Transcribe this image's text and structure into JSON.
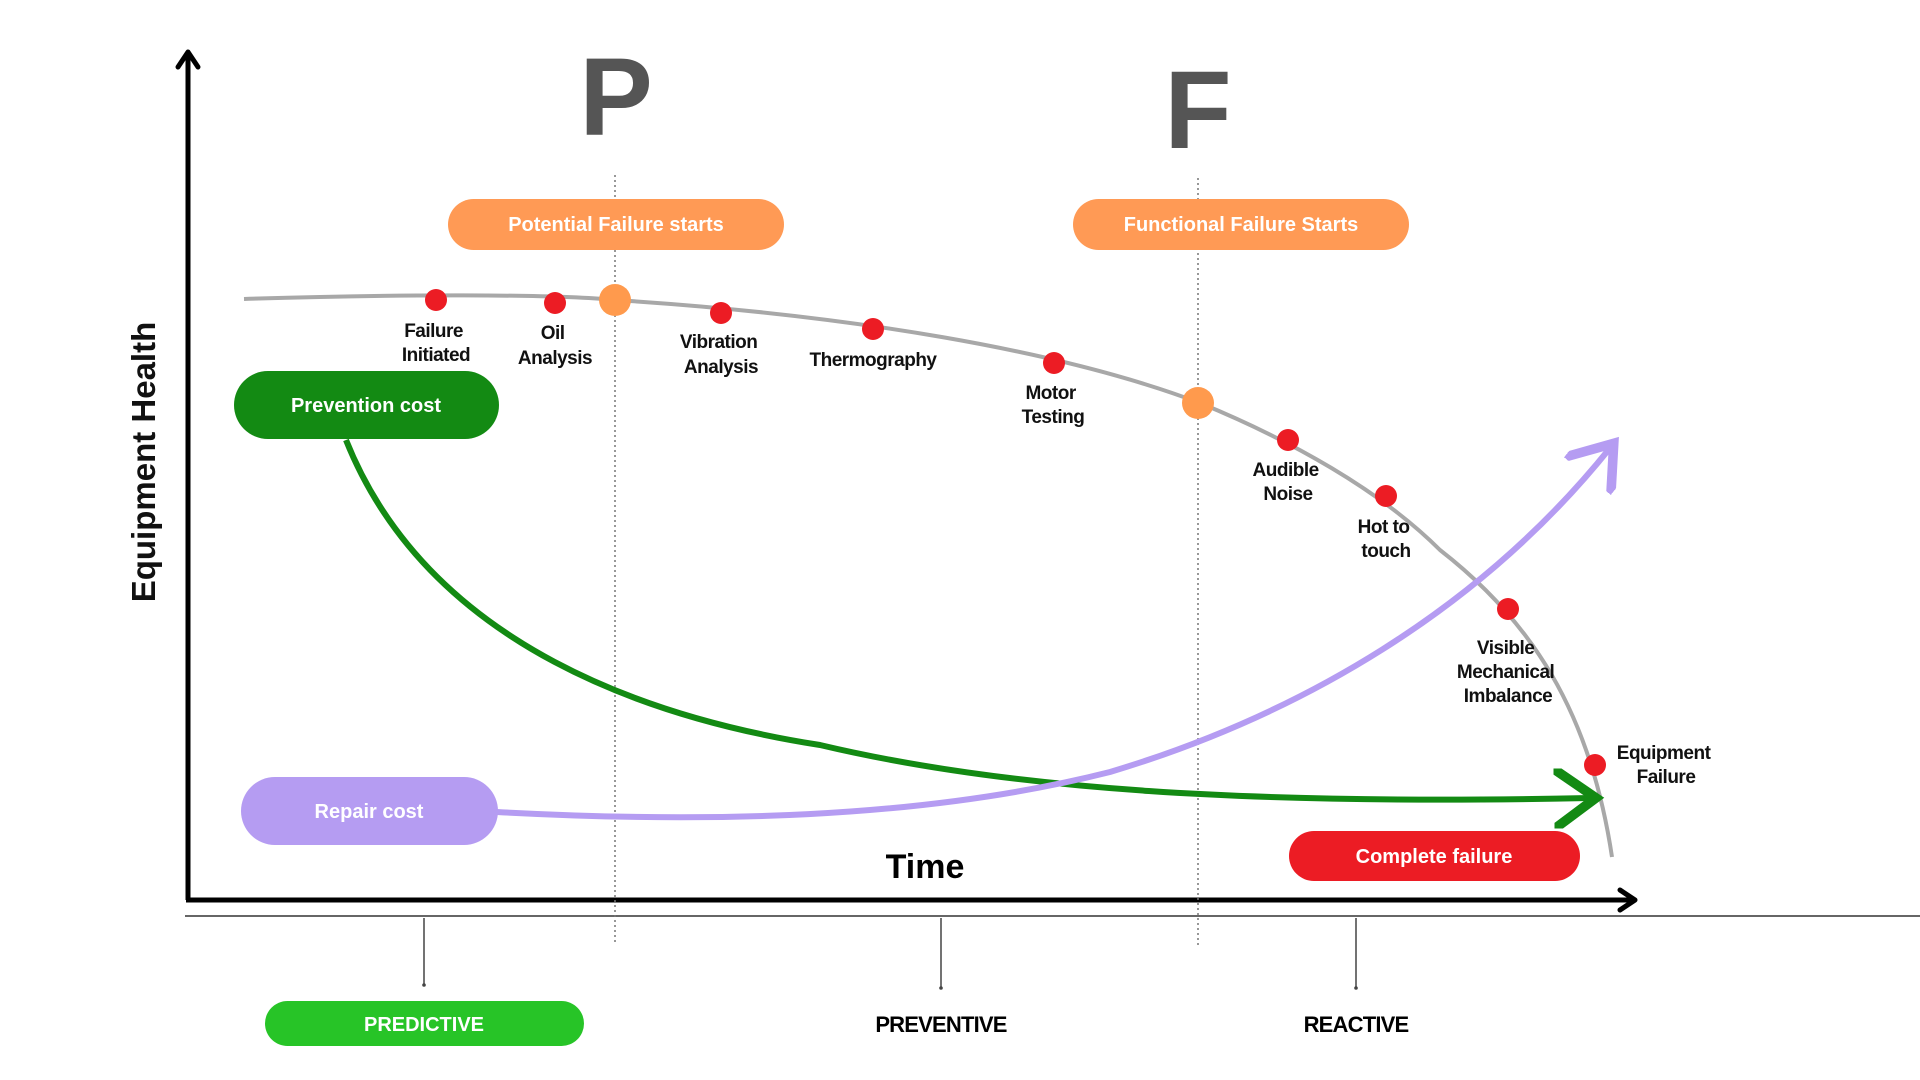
{
  "axes": {
    "y_label": "Equipment Health",
    "x_label": "Time"
  },
  "markers": {
    "p": "P",
    "f": "F"
  },
  "banners": {
    "potential": "Potential Failure starts",
    "functional": "Functional Failure Starts",
    "prevention": "Prevention cost",
    "repair": "Repair cost",
    "complete": "Complete failure"
  },
  "points": {
    "failure_initiated": [
      "Failure",
      "Initiated"
    ],
    "oil_analysis": [
      "Oil",
      "Analysis"
    ],
    "vibration_analysis": [
      "Vibration",
      "Analysis"
    ],
    "thermography": [
      "Thermography"
    ],
    "motor_testing": [
      "Motor",
      "Testing"
    ],
    "audible_noise": [
      "Audible",
      "Noise"
    ],
    "hot_to_touch": [
      "Hot to",
      "touch"
    ],
    "visible_imbalance": [
      "Visible",
      "Mechanical",
      "Imbalance"
    ],
    "equipment_failure": [
      "Equipment",
      "Failure"
    ]
  },
  "zones": {
    "predictive": "PREDICTIVE",
    "preventive": "PREVENTIVE",
    "reactive": "REACTIVE"
  },
  "colors": {
    "health_curve": "#a8a8a8",
    "prevention": "#138a13",
    "repair": "#b59cf2",
    "banner_orange": "#ff9a55",
    "marker_orange": "#ff9a4d",
    "marker_red": "#ec1c24",
    "complete_red": "#ec1c24",
    "predictive_green": "#27c427",
    "axis": "#000000",
    "pf_letters": "#555555"
  }
}
